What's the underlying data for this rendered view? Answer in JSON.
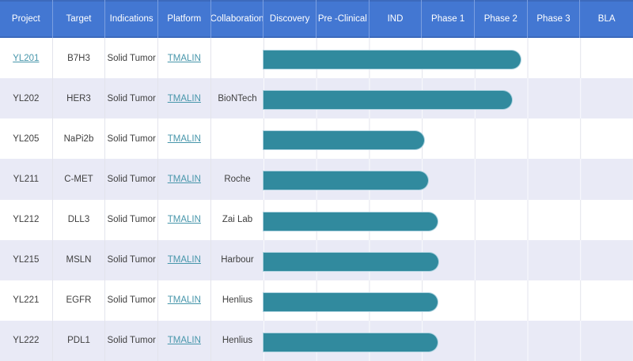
{
  "table": {
    "columns": [
      "Project",
      "Target",
      "Indications",
      "Platform",
      "Collaboration",
      "Discovery",
      "Pre -Clinical",
      "IND",
      "Phase 1",
      "Phase 2",
      "Phase 3",
      "BLA"
    ],
    "rows": [
      {
        "project": "YL201",
        "target": "B7H3",
        "indications": "Solid Tumor",
        "platform": "TMALIN",
        "collaboration": "",
        "progress": 4.87
      },
      {
        "project": "YL202",
        "target": "HER3",
        "indications": "Solid Tumor",
        "platform": "TMALIN",
        "collaboration": "BioNTech",
        "progress": 4.71
      },
      {
        "project": "YL205",
        "target": "NaPi2b",
        "indications": "Solid Tumor",
        "platform": "TMALIN",
        "collaboration": "",
        "progress": 3.04
      },
      {
        "project": "YL211",
        "target": "C-MET",
        "indications": "Solid Tumor",
        "platform": "TMALIN",
        "collaboration": "Roche",
        "progress": 3.12
      },
      {
        "project": "YL212",
        "target": "DLL3",
        "indications": "Solid Tumor",
        "platform": "TMALIN",
        "collaboration": "Zai Lab",
        "progress": 3.3
      },
      {
        "project": "YL215",
        "target": "MSLN",
        "indications": "Solid Tumor",
        "platform": "TMALIN",
        "collaboration": "Harbour",
        "progress": 3.31
      },
      {
        "project": "YL221",
        "target": "EGFR",
        "indications": "Solid Tumor",
        "platform": "TMALIN",
        "collaboration": "Henlius",
        "progress": 3.3
      },
      {
        "project": "YL222",
        "target": "PDL1",
        "indications": "Solid Tumor",
        "platform": "TMALIN",
        "collaboration": "Henlius",
        "progress": 3.3
      }
    ]
  },
  "colors": {
    "header_bg": "#4377d2",
    "header_divider": "#7b9fe0",
    "header_text": "#ffffff",
    "row_bg": "#ffffff",
    "row_alt_bg": "#e9eaf6",
    "grid_line": "#e3e4ec",
    "text": "#3f3f3f",
    "link": "#4796ab",
    "bar": "#318a9e",
    "bar_outline": "#aed3e0"
  },
  "chart_data": {
    "type": "bar",
    "subtype": "horizontal-gantt-pipeline",
    "phase_axis": [
      "Discovery",
      "Pre -Clinical",
      "IND",
      "Phase 1",
      "Phase 2",
      "Phase 3",
      "BLA"
    ],
    "categories": [
      "YL201",
      "YL202",
      "YL205",
      "YL211",
      "YL212",
      "YL215",
      "YL221",
      "YL222"
    ],
    "values": [
      4.87,
      4.71,
      3.04,
      3.12,
      3.3,
      3.31,
      3.3,
      3.3
    ],
    "value_meaning": "progress measured in phase-column units from the start of Discovery (1.0 = one full phase column); e.g. 4.87 = most of the way through Phase 2, 3.3 = early Phase 1",
    "bar_color": "#318a9e",
    "xlim": [
      0,
      7
    ],
    "grid": true,
    "legend": false
  }
}
